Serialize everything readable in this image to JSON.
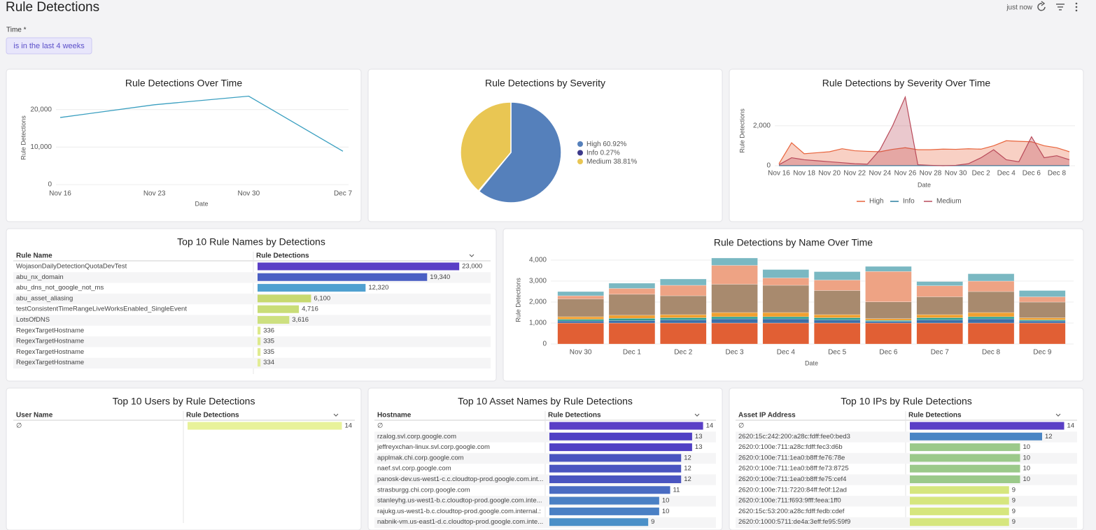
{
  "header": {
    "title": "Rule Detections",
    "updated": "just now"
  },
  "filter": {
    "label": "Time *",
    "value": "is in the last 4 weeks"
  },
  "chart_data": [
    {
      "type": "line",
      "title": "Rule Detections Over Time",
      "x_label": "Date",
      "y_label": "Rule Detections",
      "categories": [
        "Nov 16",
        "Nov 23",
        "Nov 30",
        "Dec 7"
      ],
      "values": [
        17900,
        21300,
        23600,
        8900
      ],
      "color": "#3a9fc0",
      "ylim": [
        0,
        25000
      ],
      "yticks": [
        0,
        {
          "value": 10000,
          "label": "10,000"
        },
        {
          "value": 20000,
          "label": "20,000"
        }
      ],
      "grid": true
    },
    {
      "type": "pie",
      "title": "Rule Detections by Severity",
      "categories": [
        "High",
        "Info",
        "Medium"
      ],
      "values": [
        60.92,
        0.27,
        38.81
      ],
      "value_labels": [
        "60.92%",
        "0.27%",
        "38.81%"
      ],
      "colors": [
        "#5580bb",
        "#3d3a8a",
        "#e9c653"
      ],
      "legend": "right"
    },
    {
      "type": "area",
      "title": "Rule Detections by Severity Over Time",
      "x_label": "Date",
      "y_label": "Rule Detections",
      "categories": [
        "Nov 16",
        null,
        "Nov 18",
        null,
        "Nov 20",
        null,
        "Nov 22",
        null,
        "Nov 24",
        null,
        "Nov 26",
        null,
        "Nov 28",
        null,
        "Nov 30",
        null,
        "Dec 2",
        null,
        "Dec 4",
        null,
        "Dec 6",
        null,
        "Dec 8",
        null
      ],
      "series": [
        {
          "name": "High",
          "color": "#e8643c",
          "values": [
            100,
            1150,
            600,
            650,
            700,
            850,
            750,
            720,
            700,
            820,
            900,
            800,
            800,
            830,
            820,
            850,
            830,
            1000,
            1250,
            1220,
            1200,
            1000,
            900,
            700
          ]
        },
        {
          "name": "Info",
          "color": "#2a7fa0",
          "values": [
            5,
            5,
            5,
            5,
            5,
            5,
            5,
            5,
            5,
            5,
            5,
            5,
            5,
            5,
            5,
            5,
            5,
            5,
            5,
            5,
            5,
            5,
            5,
            5
          ]
        },
        {
          "name": "Medium",
          "color": "#b94a5a",
          "values": [
            50,
            400,
            300,
            250,
            200,
            150,
            100,
            80,
            800,
            2000,
            3440,
            50,
            20,
            0,
            20,
            100,
            400,
            800,
            300,
            200,
            1450,
            400,
            500,
            300
          ]
        }
      ],
      "ylim": [
        0,
        3500
      ],
      "yticks": [
        0,
        {
          "value": 2000,
          "label": "2,000"
        }
      ],
      "grid": true,
      "legend": "bottom"
    },
    {
      "type": "stacked_bar",
      "title": "Rule Detections by Name Over Time",
      "x_label": "Date",
      "y_label": "Rule Detections",
      "categories": [
        "Nov 30",
        "Dec 1",
        "Dec 2",
        "Dec 3",
        "Dec 4",
        "Dec 5",
        "Dec 6",
        "Dec 7",
        "Dec 8",
        "Dec 9"
      ],
      "series": [
        {
          "color": "#e15f34",
          "values": [
            1000,
            1000,
            1000,
            1000,
            1000,
            1000,
            1000,
            1000,
            1000,
            1000
          ]
        },
        {
          "color": "#3b6fa8",
          "values": [
            100,
            120,
            150,
            200,
            200,
            150,
            80,
            150,
            200,
            100
          ]
        },
        {
          "color": "#2a9d8f",
          "values": [
            80,
            100,
            100,
            100,
            100,
            100,
            50,
            100,
            100,
            50
          ]
        },
        {
          "color": "#f0a030",
          "values": [
            120,
            150,
            150,
            200,
            200,
            150,
            80,
            150,
            200,
            100
          ]
        },
        {
          "color": "#a88a6e",
          "values": [
            850,
            1000,
            900,
            1350,
            1300,
            1150,
            800,
            850,
            1000,
            750
          ]
        },
        {
          "color": "#eea384",
          "values": [
            150,
            280,
            500,
            900,
            350,
            500,
            1450,
            530,
            500,
            250
          ]
        },
        {
          "color": "#7ab8c2",
          "values": [
            200,
            250,
            300,
            350,
            400,
            400,
            240,
            200,
            350,
            300
          ]
        }
      ],
      "ylim": [
        0,
        4200
      ],
      "yticks": [
        0,
        {
          "value": 1000,
          "label": "1,000"
        },
        {
          "value": 2000,
          "label": "2,000"
        },
        {
          "value": 3000,
          "label": "3,000"
        },
        {
          "value": 4000,
          "label": "4,000"
        }
      ],
      "grid": true
    }
  ],
  "tables": [
    {
      "title": "Top 10 Rule Names by Detections",
      "columns": [
        "Rule Name",
        "Rule Detections"
      ],
      "labels": [
        "WojasonDailyDetectionQuotaDevTest",
        "abu_nx_domain",
        "abu_dns_not_google_not_ms",
        "abu_asset_aliasing",
        "testConsistentTimeRangeLiveWorksEnabled_SingleEvent",
        "LotsOfDNS",
        "RegexTargetHostname",
        "RegexTargetHostname",
        "RegexTargetHostname",
        "RegexTargetHostname"
      ],
      "values": [
        23000,
        19340,
        12320,
        6100,
        4716,
        3616,
        336,
        335,
        335,
        334
      ],
      "value_labels": [
        "23,000",
        "19,340",
        "12,320",
        "6,100",
        "4,716",
        "3,616",
        "336",
        "335",
        "335",
        "334"
      ],
      "colors": [
        "#5a3fc6",
        "#4a5fc4",
        "#4fa0d0",
        "#c7d970",
        "#c9dd78",
        "#cde080",
        "#dde98b",
        "#dde98b",
        "#e0eb90",
        "#e2ec95"
      ]
    },
    {
      "title": "Top 10 Users by Rule Detections",
      "columns": [
        "User Name",
        "Rule Detections"
      ],
      "labels": [
        "∅"
      ],
      "values": [
        14
      ],
      "colors": [
        "#e8f29a"
      ]
    },
    {
      "title": "Top 10 Asset Names by Rule Detections",
      "columns": [
        "Hostname",
        "Rule Detections"
      ],
      "labels": [
        "∅",
        "rzalog.svl.corp.google.com",
        "jeffreyxchan-linux.svl.corp.google.com",
        "applmak.chi.corp.google.com",
        "naef.svl.corp.google.com",
        "panosk-dev.us-west1-c.c.cloudtop-prod.google.com.int...",
        "strasburgg.chi.corp.google.com",
        "stanleyhg.us-west1-b.c.cloudtop-prod.google.com.inte...",
        "rajukg.us-west1-b.c.cloudtop-prod.google.com.internal.:",
        "nabnik-vm.us-east1-d.c.cloudtop-prod.google.com.inte..."
      ],
      "values": [
        14,
        13,
        13,
        12,
        12,
        12,
        11,
        10,
        10,
        9
      ],
      "colors": [
        "#5a3fc6",
        "#5040c4",
        "#5040c4",
        "#4a55c0",
        "#4a55c0",
        "#4a55c0",
        "#4a6cc2",
        "#4a80c4",
        "#4a80c4",
        "#4b90c8"
      ]
    },
    {
      "title": "Top 10 IPs by Rule Detections",
      "columns": [
        "Asset IP Address",
        "Rule Detections"
      ],
      "labels": [
        "∅",
        "2620:15c:242:200:a28c:fdff:fee0:bed3",
        "2620:0:100e:711:a28c:fdff:fec3:d6b",
        "2620:0:100e:711:1ea0:b8ff:fe76:78e",
        "2620:0:100e:711:1ea0:b8ff:fe73:8725",
        "2620:0:100e:711:1ea0:b8ff:fe75:cef4",
        "2620:0:100e:711:7220:84ff:fe0f:12ad",
        "2620:0:100e:711:f693:9fff:feea:1ff0",
        "2620:15c:53:200:a28c:fdff:fedb:cdef",
        "2620:0:1000:5711:de4a:3eff:fe95:59f9"
      ],
      "values": [
        14,
        12,
        10,
        10,
        10,
        10,
        9,
        9,
        9,
        9
      ],
      "colors": [
        "#5a3fc6",
        "#4a85c4",
        "#9bc98a",
        "#9bc98a",
        "#9bc98a",
        "#9bc98a",
        "#d6e67e",
        "#d6e67e",
        "#d6e67e",
        "#d6e67e"
      ]
    }
  ]
}
